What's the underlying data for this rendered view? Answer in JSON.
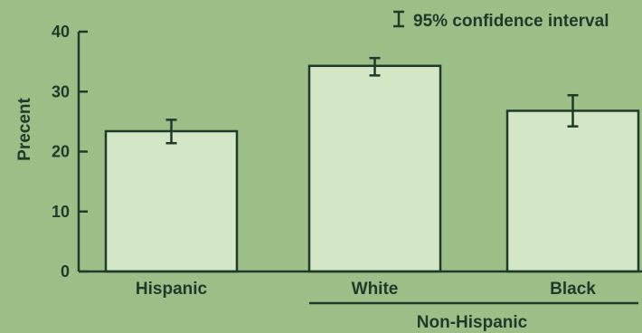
{
  "colors": {
    "background": "#9dbf87",
    "bar_fill": "#d3e6c6",
    "ink": "#1e3a2a"
  },
  "legend": {
    "label": "95% confidence interval"
  },
  "chart_data": {
    "type": "bar",
    "categories": [
      "Hispanic",
      "White",
      "Black"
    ],
    "values": [
      23.4,
      34.3,
      26.8
    ],
    "error_bars": [
      {
        "low": 21.4,
        "high": 25.3
      },
      {
        "low": 32.7,
        "high": 35.6
      },
      {
        "low": 24.2,
        "high": 29.4
      }
    ],
    "group_label": "Non-Hispanic",
    "group_members": [
      "White",
      "Black"
    ],
    "ylabel": "Precent",
    "xlabel": "",
    "ylim": [
      0,
      40
    ],
    "yticks": [
      0,
      10,
      20,
      30,
      40
    ],
    "ytick_labels": [
      "0",
      "10",
      "20",
      "30",
      "40"
    ],
    "grid": false,
    "legend_position": "top-right"
  }
}
